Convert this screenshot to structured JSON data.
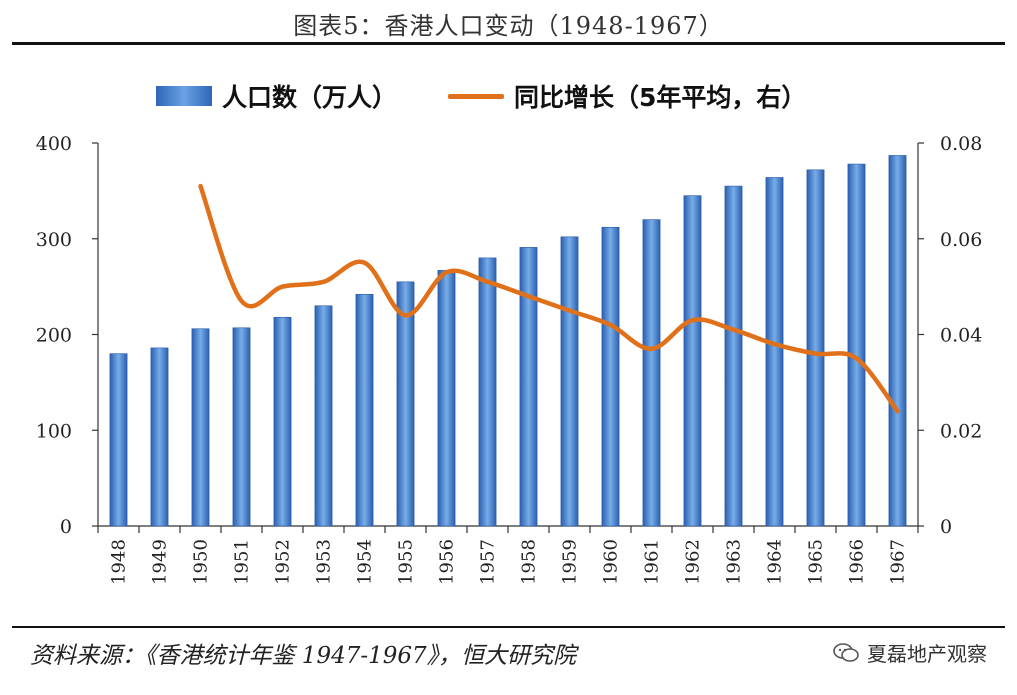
{
  "title": "图表5：香港人口变动（1948-1967）",
  "source": "资料来源：《香港统计年鉴 1947-1967》，恒大研究院",
  "watermark": "夏磊地产观察",
  "colors": {
    "bar": "#3a75c4",
    "line": "#e0711a"
  },
  "chart_data": {
    "type": "bar",
    "categories": [
      "1948",
      "1949",
      "1950",
      "1951",
      "1952",
      "1953",
      "1954",
      "1955",
      "1956",
      "1957",
      "1958",
      "1959",
      "1960",
      "1961",
      "1962",
      "1963",
      "1964",
      "1965",
      "1966",
      "1967"
    ],
    "series": [
      {
        "name": "人口数（万人）",
        "type": "bar",
        "axis": "left",
        "values": [
          180,
          186,
          206,
          207,
          218,
          230,
          242,
          255,
          267,
          280,
          291,
          302,
          312,
          320,
          345,
          355,
          364,
          372,
          378,
          387
        ]
      },
      {
        "name": "同比增长（5年平均，右）",
        "type": "line",
        "axis": "right",
        "values": [
          null,
          null,
          0.071,
          0.047,
          0.05,
          0.051,
          0.055,
          0.044,
          0.053,
          0.051,
          0.048,
          0.045,
          0.042,
          0.037,
          0.043,
          0.041,
          0.038,
          0.036,
          0.035,
          0.024
        ]
      }
    ],
    "y_left": {
      "ylim": [
        0,
        400
      ],
      "ticks": [
        "0",
        "100",
        "200",
        "300",
        "400"
      ]
    },
    "y_right": {
      "ylim": [
        0,
        0.08
      ],
      "ticks": [
        "0",
        "0.02",
        "0.04",
        "0.06",
        "0.08"
      ]
    },
    "legend_position": "top",
    "grid": false
  }
}
